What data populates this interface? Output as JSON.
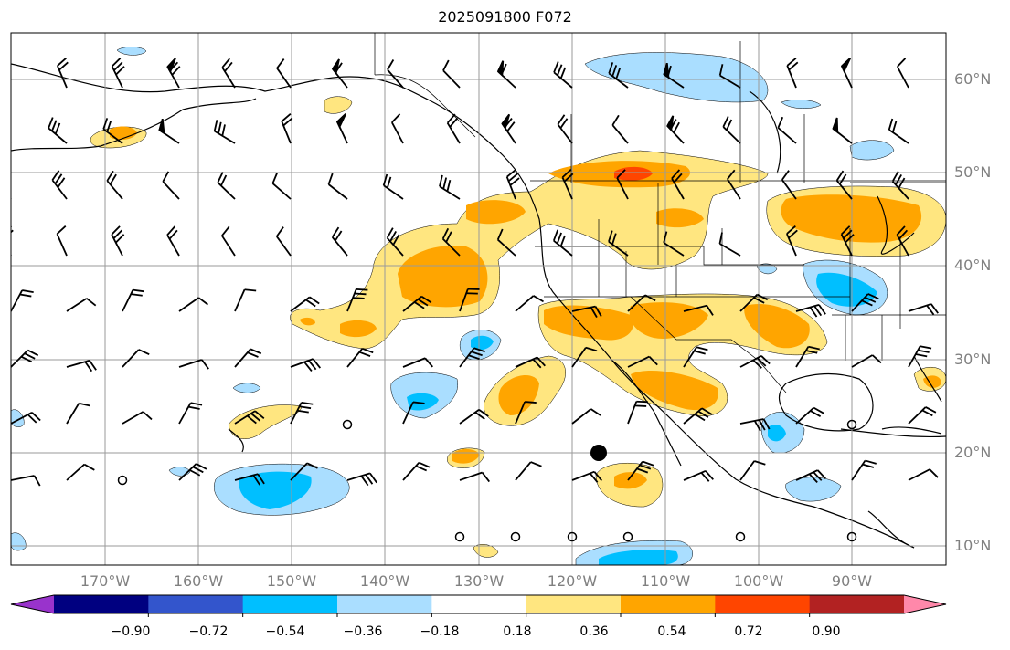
{
  "title": "2025091800 F072",
  "map": {
    "projection": "PlateCarree",
    "extent": {
      "lon_min": -180,
      "lon_max": -80,
      "lat_min": 8,
      "lat_max": 65
    },
    "lat_ticks": [
      {
        "value": 60,
        "label": "60°N"
      },
      {
        "value": 50,
        "label": "50°N"
      },
      {
        "value": 40,
        "label": "40°N"
      },
      {
        "value": 30,
        "label": "30°N"
      },
      {
        "value": 20,
        "label": "20°N"
      },
      {
        "value": 10,
        "label": "10°N"
      }
    ],
    "lon_ticks": [
      {
        "value": -170,
        "label": "170°W"
      },
      {
        "value": -160,
        "label": "160°W"
      },
      {
        "value": -150,
        "label": "150°W"
      },
      {
        "value": -140,
        "label": "140°W"
      },
      {
        "value": -130,
        "label": "130°W"
      },
      {
        "value": -120,
        "label": "120°W"
      },
      {
        "value": -110,
        "label": "110°W"
      },
      {
        "value": -100,
        "label": "100°W"
      },
      {
        "value": -90,
        "label": "90°W"
      }
    ],
    "marker": {
      "type": "filled-circle",
      "lon": -116,
      "lat": 20
    }
  },
  "colorbar": {
    "levels": [
      "−0.90",
      "−0.72",
      "−0.54",
      "−0.36",
      "−0.18",
      "0.18",
      "0.36",
      "0.54",
      "0.72",
      "0.90"
    ],
    "colors": [
      "#9933cc",
      "#000080",
      "#3355cc",
      "#00bfff",
      "#aadeff",
      "#ffffff",
      "#ffe680",
      "#ffa500",
      "#ff4500",
      "#b22222",
      "#ff88aa"
    ]
  },
  "legend_colors": {
    "weak_pos": "#ffe680",
    "mid_pos": "#ffa500",
    "strong_pos": "#ff4500",
    "weak_neg": "#aadeff",
    "mid_neg": "#00bfff"
  }
}
